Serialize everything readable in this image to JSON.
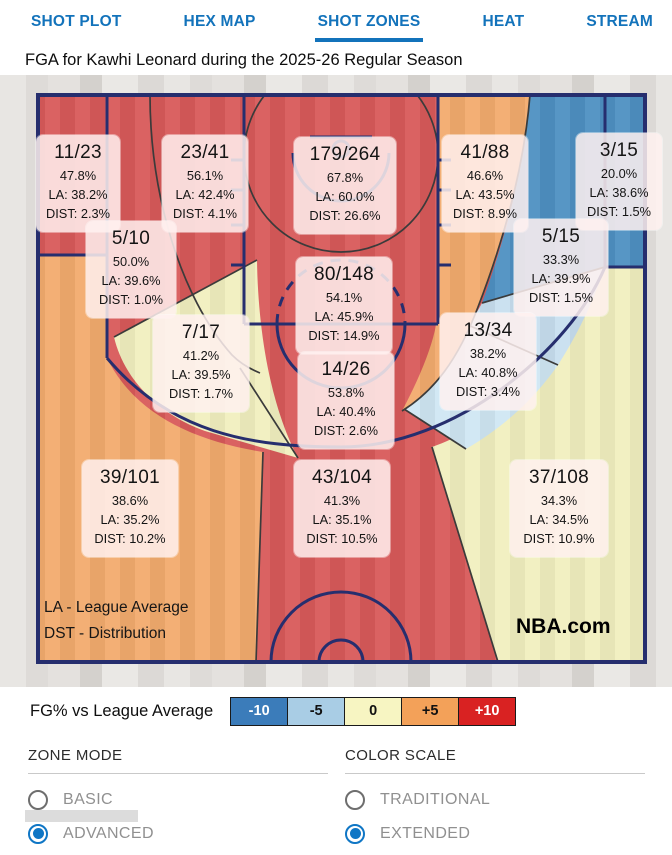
{
  "tabs": [
    {
      "label": "SHOT PLOT",
      "active": false
    },
    {
      "label": "HEX MAP",
      "active": false
    },
    {
      "label": "SHOT ZONES",
      "active": true
    },
    {
      "label": "HEAT",
      "active": false
    },
    {
      "label": "STREAM",
      "active": false
    }
  ],
  "title": "FGA for Kawhi Leonard during the 2025-26 Regular Season",
  "court_notes": {
    "la": "LA - League Average",
    "dst": "DST - Distribution",
    "watermark": "NBA.com"
  },
  "legend": {
    "label": "FG% vs League Average",
    "buckets": [
      {
        "label": "-10",
        "color": "#3b7cba",
        "text": "#ffffff"
      },
      {
        "label": "-5",
        "color": "#a9cde5",
        "text": "#111111"
      },
      {
        "label": "0",
        "color": "#f7f5c2",
        "text": "#111111"
      },
      {
        "label": "+5",
        "color": "#f3a159",
        "text": "#111111"
      },
      {
        "label": "+10",
        "color": "#d92222",
        "text": "#ffffff"
      }
    ]
  },
  "controls": {
    "zone_mode": {
      "heading": "ZONE MODE",
      "options": [
        {
          "label": "BASIC",
          "selected": false
        },
        {
          "label": "ADVANCED",
          "selected": true
        }
      ]
    },
    "color_scale": {
      "heading": "COLOR SCALE",
      "options": [
        {
          "label": "TRADITIONAL",
          "selected": false
        },
        {
          "label": "EXTENDED",
          "selected": true
        }
      ]
    }
  },
  "chart_data": {
    "type": "shot-zone-map",
    "title": "FGA for Kawhi Leonard during the 2025-26 Regular Season",
    "legend": "FG% vs League Average",
    "color_scale_buckets": [
      -10,
      -5,
      0,
      5,
      10
    ],
    "zones": [
      {
        "id": "left-corner-3",
        "fraction": "11/23",
        "made": 11,
        "attempts": 23,
        "pct_label": "47.8%",
        "la_label": "LA: 38.2%",
        "dist_label": "DIST: 2.3%",
        "fg_pct": 47.8,
        "league_avg": 38.2,
        "dist_pct": 2.3,
        "fill": "#d85a5a"
      },
      {
        "id": "left-8-16",
        "fraction": "23/41",
        "made": 23,
        "attempts": 41,
        "pct_label": "56.1%",
        "la_label": "LA: 42.4%",
        "dist_label": "DIST: 4.1%",
        "fg_pct": 56.1,
        "league_avg": 42.4,
        "dist_pct": 4.1,
        "fill": "#d85a5a"
      },
      {
        "id": "restricted-area",
        "fraction": "179/264",
        "made": 179,
        "attempts": 264,
        "pct_label": "67.8%",
        "la_label": "LA: 60.0%",
        "dist_label": "DIST: 26.6%",
        "fg_pct": 67.8,
        "league_avg": 60.0,
        "dist_pct": 26.6,
        "fill": "#d85a5a"
      },
      {
        "id": "right-8-16",
        "fraction": "41/88",
        "made": 41,
        "attempts": 88,
        "pct_label": "46.6%",
        "la_label": "LA: 43.5%",
        "dist_label": "DIST: 8.9%",
        "fg_pct": 46.6,
        "league_avg": 43.5,
        "dist_pct": 8.9,
        "fill": "#f2ab6e"
      },
      {
        "id": "right-corner-3",
        "fraction": "3/15",
        "made": 3,
        "attempts": 15,
        "pct_label": "20.0%",
        "la_label": "LA: 38.6%",
        "dist_label": "DIST: 1.5%",
        "fg_pct": 20.0,
        "league_avg": 38.6,
        "dist_pct": 1.5,
        "fill": "#4e90c2"
      },
      {
        "id": "left-baseline-mid",
        "fraction": "5/10",
        "made": 5,
        "attempts": 10,
        "pct_label": "50.0%",
        "la_label": "LA: 39.6%",
        "dist_label": "DIST: 1.0%",
        "fg_pct": 50.0,
        "league_avg": 39.6,
        "dist_pct": 1.0,
        "fill": "#d85a5a"
      },
      {
        "id": "right-baseline-mid",
        "fraction": "5/15",
        "made": 5,
        "attempts": 15,
        "pct_label": "33.3%",
        "la_label": "LA: 39.9%",
        "dist_label": "DIST: 1.5%",
        "fg_pct": 33.3,
        "league_avg": 39.9,
        "dist_pct": 1.5,
        "fill": "#c8dfef"
      },
      {
        "id": "paint-non-ra",
        "fraction": "80/148",
        "made": 80,
        "attempts": 148,
        "pct_label": "54.1%",
        "la_label": "LA: 45.9%",
        "dist_label": "DIST: 14.9%",
        "fg_pct": 54.1,
        "league_avg": 45.9,
        "dist_pct": 14.9,
        "fill": "#d85a5a"
      },
      {
        "id": "left-center-mid",
        "fraction": "7/17",
        "made": 7,
        "attempts": 17,
        "pct_label": "41.2%",
        "la_label": "LA: 39.5%",
        "dist_label": "DIST: 1.7%",
        "fg_pct": 41.2,
        "league_avg": 39.5,
        "dist_pct": 1.7,
        "fill": "#f1efbf"
      },
      {
        "id": "right-center-mid",
        "fraction": "13/34",
        "made": 13,
        "attempts": 34,
        "pct_label": "38.2%",
        "la_label": "LA: 40.8%",
        "dist_label": "DIST: 3.4%",
        "fg_pct": 38.2,
        "league_avg": 40.8,
        "dist_pct": 3.4,
        "fill": "#d0e7f3"
      },
      {
        "id": "center-mid",
        "fraction": "14/26",
        "made": 14,
        "attempts": 26,
        "pct_label": "53.8%",
        "la_label": "LA: 40.4%",
        "dist_label": "DIST: 2.6%",
        "fg_pct": 53.8,
        "league_avg": 40.4,
        "dist_pct": 2.6,
        "fill": "#d85a5a"
      },
      {
        "id": "left-3",
        "fraction": "39/101",
        "made": 39,
        "attempts": 101,
        "pct_label": "38.6%",
        "la_label": "LA: 35.2%",
        "dist_label": "DIST: 10.2%",
        "fg_pct": 38.6,
        "league_avg": 35.2,
        "dist_pct": 10.2,
        "fill": "#f2ab6e"
      },
      {
        "id": "center-3",
        "fraction": "43/104",
        "made": 43,
        "attempts": 104,
        "pct_label": "41.3%",
        "la_label": "LA: 35.1%",
        "dist_label": "DIST: 10.5%",
        "fg_pct": 41.3,
        "league_avg": 35.1,
        "dist_pct": 10.5,
        "fill": "#d85a5a"
      },
      {
        "id": "right-3",
        "fraction": "37/108",
        "made": 37,
        "attempts": 108,
        "pct_label": "34.3%",
        "la_label": "LA: 34.5%",
        "dist_label": "DIST: 10.9%",
        "fg_pct": 34.3,
        "league_avg": 34.5,
        "dist_pct": 10.9,
        "fill": "#f1efbf"
      }
    ]
  }
}
